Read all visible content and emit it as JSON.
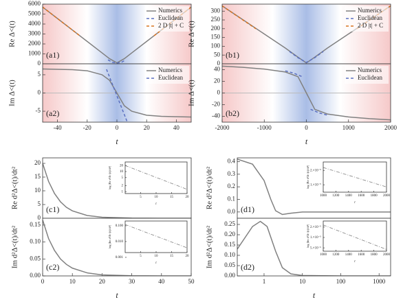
{
  "chart_data": [
    {
      "type": "line",
      "panel_label": "(a1)",
      "ylabel": "Re Δ<(t)",
      "xlim": [
        -50,
        50
      ],
      "ylim": [
        0,
        6000
      ],
      "yticks": [
        0,
        1000,
        2000,
        3000,
        4000,
        5000,
        6000
      ],
      "shaded": true,
      "legend": "upper right",
      "series": [
        {
          "name": "Numerics",
          "color": "#808080",
          "dash": "solid",
          "x": [
            -50,
            -40,
            -30,
            -20,
            -10,
            -5,
            0,
            5,
            10,
            20,
            30,
            40,
            50
          ],
          "values": [
            5700,
            4550,
            3400,
            2250,
            1100,
            520,
            100,
            520,
            1100,
            2250,
            3400,
            4550,
            5700
          ]
        },
        {
          "name": "Euclidean",
          "color": "#5a6fc0",
          "dash": "dashed",
          "x": [
            -6,
            -3,
            0,
            3,
            6
          ],
          "values": [
            400,
            150,
            80,
            150,
            400
          ]
        },
        {
          "name": "2 D |t| + C",
          "color": "#d9731f",
          "dash": "dashed",
          "x": [
            -50,
            -25,
            0,
            25,
            50
          ],
          "values": [
            5700,
            2825,
            null,
            2825,
            5700
          ]
        }
      ]
    },
    {
      "type": "line",
      "panel_label": "(a2)",
      "ylabel": "Im Δ<(t)",
      "xlabel": "t",
      "xlim": [
        -50,
        50
      ],
      "ylim": [
        -8,
        8
      ],
      "xticks": [
        -40,
        -20,
        0,
        20,
        40
      ],
      "yticks": [
        -5,
        0,
        5
      ],
      "shaded": true,
      "zero_line": true,
      "legend": "upper right",
      "series": [
        {
          "name": "Numerics",
          "color": "#808080",
          "dash": "solid",
          "x": [
            -50,
            -40,
            -30,
            -20,
            -10,
            -5,
            0,
            5,
            10,
            20,
            30,
            40,
            50
          ],
          "values": [
            6.6,
            6.5,
            6.4,
            6.1,
            5.0,
            3.5,
            0,
            -3.5,
            -5.0,
            -6.1,
            -6.4,
            -6.5,
            -6.6
          ]
        },
        {
          "name": "Euclidean",
          "color": "#5a6fc0",
          "dash": "dashed",
          "x": [
            -7,
            7
          ],
          "values": [
            6.5,
            -8
          ]
        }
      ]
    },
    {
      "type": "line",
      "panel_label": "(b1)",
      "ylabel": "Re Δ<(t)",
      "xlim": [
        -2000,
        2000
      ],
      "ylim": [
        0,
        340
      ],
      "yticks": [
        0,
        50,
        100,
        150,
        200,
        250,
        300
      ],
      "shaded": true,
      "legend": "upper right",
      "series": [
        {
          "name": "Numerics",
          "color": "#808080",
          "dash": "solid",
          "x": [
            -2000,
            -1000,
            -500,
            -200,
            0,
            200,
            500,
            1000,
            2000
          ],
          "values": [
            330,
            170,
            90,
            38,
            5,
            38,
            90,
            170,
            330
          ]
        },
        {
          "name": "Euclidean",
          "color": "#5a6fc0",
          "dash": "dashed",
          "x": [
            -400,
            -200,
            0,
            200,
            400
          ],
          "values": [
            70,
            35,
            8,
            35,
            70
          ]
        },
        {
          "name": "2 D |t| + C",
          "color": "#d9731f",
          "dash": "dashed",
          "x": [
            -2000,
            -1200,
            0,
            1200,
            2000
          ],
          "values": [
            330,
            200,
            null,
            200,
            330
          ]
        }
      ]
    },
    {
      "type": "line",
      "panel_label": "(b2)",
      "ylabel": "Im Δ<(t)",
      "xlabel": "t",
      "xlim": [
        -2000,
        2000
      ],
      "ylim": [
        -50,
        50
      ],
      "xticks": [
        -2000,
        -1000,
        0,
        1000,
        2000
      ],
      "yticks": [
        -40,
        -20,
        0,
        20,
        40
      ],
      "shaded": true,
      "zero_line": true,
      "legend": "upper right",
      "series": [
        {
          "name": "Numerics",
          "color": "#808080",
          "dash": "solid",
          "x": [
            -2000,
            -1500,
            -1000,
            -500,
            -200,
            0,
            200,
            500,
            1000,
            1500,
            2000
          ],
          "values": [
            46,
            44,
            41,
            36,
            28,
            0,
            -28,
            -36,
            -41,
            -44,
            -46
          ]
        },
        {
          "name": "Euclidean",
          "color": "#5a6fc0",
          "dash": "dashed",
          "x": [
            -500,
            -300,
            -100,
            0,
            100,
            300,
            500
          ],
          "values": [
            38,
            34,
            28,
            null,
            -28,
            -34,
            -38
          ]
        }
      ]
    },
    {
      "type": "line",
      "panel_label": "(c1)",
      "ylabel": "Re d²Δ<(t)/dt²",
      "xlim": [
        0,
        50
      ],
      "ylim": [
        0,
        22
      ],
      "yticks": [
        0,
        5,
        10,
        15,
        20
      ],
      "series": [
        {
          "color": "#808080",
          "dash": "solid",
          "x": [
            0,
            2,
            4,
            6,
            8,
            10,
            15,
            20,
            30,
            40,
            50
          ],
          "values": [
            20,
            13.4,
            9,
            6,
            4,
            2.7,
            1,
            0.37,
            0.05,
            0.01,
            0
          ]
        }
      ]
    },
    {
      "type": "line",
      "panel_label": "(c2)",
      "ylabel": "Im d²Δ<(t)/dt²",
      "xlabel": "t",
      "xlim": [
        0,
        50
      ],
      "ylim": [
        0,
        0.17
      ],
      "xticks": [
        0,
        10,
        20,
        30,
        40,
        50
      ],
      "yticks": [
        {
          "value": 0,
          "label": "0.00"
        },
        {
          "value": 0.05,
          "label": "0.05"
        },
        {
          "value": 0.1,
          "label": "0.10"
        },
        {
          "value": 0.15,
          "label": "0.15"
        }
      ],
      "series": [
        {
          "color": "#808080",
          "dash": "solid",
          "x": [
            0,
            2,
            4,
            6,
            8,
            10,
            15,
            20,
            30,
            40,
            50
          ],
          "values": [
            0.165,
            0.11,
            0.075,
            0.05,
            0.034,
            0.023,
            0.009,
            0.003,
            0.0004,
            0,
            0
          ]
        }
      ]
    },
    {
      "type": "line",
      "panel_label": "(d1)",
      "ylabel": "Re d²Δ<(t)/dt²",
      "xlog": true,
      "xlim": [
        0.2,
        2000
      ],
      "ylim": [
        -0.05,
        0.43
      ],
      "yticks": [
        {
          "value": 0,
          "label": "0.0"
        },
        {
          "value": 0.1,
          "label": "0.1"
        },
        {
          "value": 0.2,
          "label": "0.2"
        },
        {
          "value": 0.3,
          "label": "0.3"
        },
        {
          "value": 0.4,
          "label": "0.4"
        }
      ],
      "series": [
        {
          "color": "#808080",
          "dash": "solid",
          "x": [
            0.2,
            0.5,
            1,
            1.5,
            2,
            3,
            5,
            10,
            100,
            2000
          ],
          "values": [
            0.42,
            0.38,
            0.25,
            0.1,
            0.01,
            -0.02,
            -0.01,
            0,
            0,
            0
          ]
        }
      ]
    },
    {
      "type": "line",
      "panel_label": "(d2)",
      "ylabel": "Im d²Δ<(t)/dt²",
      "xlabel": "t",
      "xlog": true,
      "xlim": [
        0.2,
        2000
      ],
      "ylim": [
        0,
        0.28
      ],
      "xticks": [
        1,
        10,
        100,
        1000
      ],
      "yticks": [
        {
          "value": 0,
          "label": "0.00"
        },
        {
          "value": 0.05,
          "label": "0.05"
        },
        {
          "value": 0.1,
          "label": "0.10"
        },
        {
          "value": 0.15,
          "label": "0.15"
        },
        {
          "value": 0.2,
          "label": "0.20"
        },
        {
          "value": 0.25,
          "label": "0.25"
        }
      ],
      "series": [
        {
          "color": "#808080",
          "dash": "solid",
          "x": [
            0.2,
            0.5,
            0.8,
            1.2,
            2,
            3,
            5,
            10,
            100,
            2000
          ],
          "values": [
            0.13,
            0.24,
            0.265,
            0.24,
            0.12,
            0.04,
            0.01,
            0.002,
            0,
            0
          ]
        }
      ]
    },
    {
      "type": "line",
      "ylabel": "log |Re d²Δ<(t)/dt²|",
      "xlabel": "t",
      "ylog": true,
      "xlim": [
        0,
        20
      ],
      "ylim": [
        0.8,
        30
      ],
      "xticks": [
        5,
        10,
        15,
        20
      ],
      "yticks": [
        1,
        2,
        5,
        10,
        20
      ],
      "series": [
        {
          "color": "#808080",
          "dash": "dashdot",
          "x": [
            0,
            20
          ],
          "values": [
            20,
            1.3
          ]
        }
      ]
    },
    {
      "type": "line",
      "ylabel": "log |Im d²Δ<(t)/dt²|",
      "xlabel": "t",
      "ylog": true,
      "xlim": [
        0,
        20
      ],
      "ylim": [
        0.002,
        0.2
      ],
      "xticks": [
        5,
        10,
        15,
        20
      ],
      "yticks": [
        {
          "value": 0.001,
          "label": "0.001"
        },
        {
          "value": 0.01,
          "label": "0.010"
        },
        {
          "value": 0.1,
          "label": "0.100"
        }
      ],
      "series": [
        {
          "color": "#808080",
          "dash": "dashdot",
          "x": [
            0,
            20
          ],
          "values": [
            0.12,
            0.004
          ]
        }
      ]
    },
    {
      "type": "line",
      "ylabel": "log |Re d²Δ<(t)/dt²|",
      "xlabel": "t",
      "ylog": true,
      "xlim": [
        1000,
        2000
      ],
      "ylim": [
        7e-06,
        3e-05
      ],
      "xticks": [
        1000,
        1200,
        1400,
        1600,
        1800,
        2000
      ],
      "yticks": [
        {
          "value": 1e-05,
          "label": "1.×10⁻⁵"
        },
        {
          "value": 2e-05,
          "label": "2.×10⁻⁵"
        }
      ],
      "series": [
        {
          "color": "#808080",
          "dash": "dashdot",
          "x": [
            1000,
            2000
          ],
          "values": [
            2.3e-05,
            9e-06
          ]
        }
      ]
    },
    {
      "type": "line",
      "ylabel": "log |Im d²Δ<(t)/dt²|",
      "xlabel": "t",
      "ylog": true,
      "xlim": [
        1000,
        2000
      ],
      "ylim": [
        4e-06,
        3e-05
      ],
      "xticks": [
        1000,
        1200,
        1400,
        1600,
        1800,
        2000
      ],
      "yticks": [
        {
          "value": 5e-06,
          "label": "5.×10⁻⁶"
        },
        {
          "value": 1e-05,
          "label": "1.×10⁻⁵"
        },
        {
          "value": 2e-05,
          "label": "2.×10⁻⁵"
        }
      ],
      "series": [
        {
          "color": "#808080",
          "dash": "dashdot",
          "x": [
            1000,
            2000
          ],
          "values": [
            2.3e-05,
            4.5e-06
          ]
        }
      ]
    }
  ]
}
